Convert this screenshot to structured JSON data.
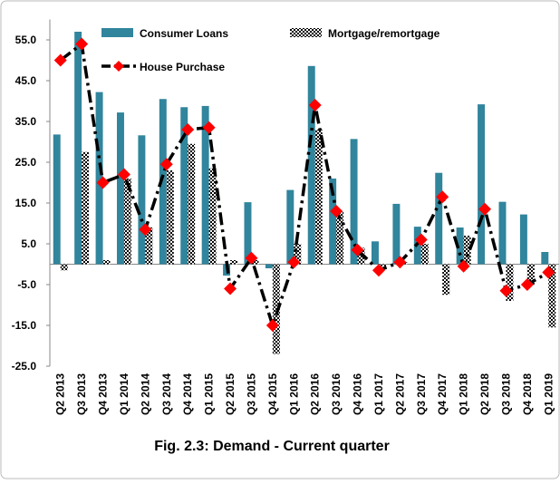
{
  "chart_data": {
    "type": "bar",
    "caption": "Fig. 2.3: Demand - Current quarter",
    "categories": [
      "Q2 2013",
      "Q3 2013",
      "Q4 2013",
      "Q1 2014",
      "Q2 2014",
      "Q3 2014",
      "Q4 2014",
      "Q1 2015",
      "Q2 2015",
      "Q3 2015",
      "Q4 2015",
      "Q1 2016",
      "Q2 2016",
      "Q3 2016",
      "Q4 2016",
      "Q1 2017",
      "Q2 2017",
      "Q3 2017",
      "Q4 2017",
      "Q1 2018",
      "Q2 2018",
      "Q3 2018",
      "Q4 2018",
      "Q1 2019"
    ],
    "series": [
      {
        "name": "Consumer Loans",
        "type": "bar",
        "color": "#31859c",
        "values": [
          31.8,
          57,
          42.2,
          37.2,
          31.6,
          40.5,
          38.5,
          38.8,
          -2.8,
          15.2,
          -1,
          18.2,
          48.6,
          21,
          30.7,
          5.6,
          14.8,
          9.2,
          22.4,
          9,
          39.2,
          15.3,
          12.2,
          3
        ]
      },
      {
        "name": "Mortgage/remortgage",
        "type": "bar",
        "color": "#000000",
        "values": [
          -1.5,
          27.5,
          1,
          21,
          9,
          23,
          29.5,
          23.5,
          1,
          1,
          -22,
          5,
          33,
          13,
          4,
          -0.5,
          0.5,
          5,
          -7.5,
          7,
          0,
          -9,
          -5,
          -15.5
        ]
      },
      {
        "name": "House Purchase",
        "type": "line",
        "color": "#000000",
        "marker_color": "#ff0000",
        "values": [
          50,
          54,
          20,
          22,
          8.5,
          24.5,
          33,
          33.5,
          -6,
          1.5,
          -15,
          0.5,
          39,
          13,
          3.5,
          -1.5,
          0.5,
          6,
          16.5,
          -0.5,
          13.5,
          -6.5,
          -5,
          -2
        ]
      }
    ],
    "ylim": [
      -25,
      60
    ],
    "yticks": [
      {
        "value": -25,
        "label": "-25.0"
      },
      {
        "value": -15,
        "label": "-15.0"
      },
      {
        "value": -5,
        "label": "-5.0"
      },
      {
        "value": 5,
        "label": "5.0"
      },
      {
        "value": 15,
        "label": "15.0"
      },
      {
        "value": 25,
        "label": "25.0"
      },
      {
        "value": 35,
        "label": "35.0"
      },
      {
        "value": 45,
        "label": "45.0"
      },
      {
        "value": 55,
        "label": "55.0"
      }
    ]
  }
}
